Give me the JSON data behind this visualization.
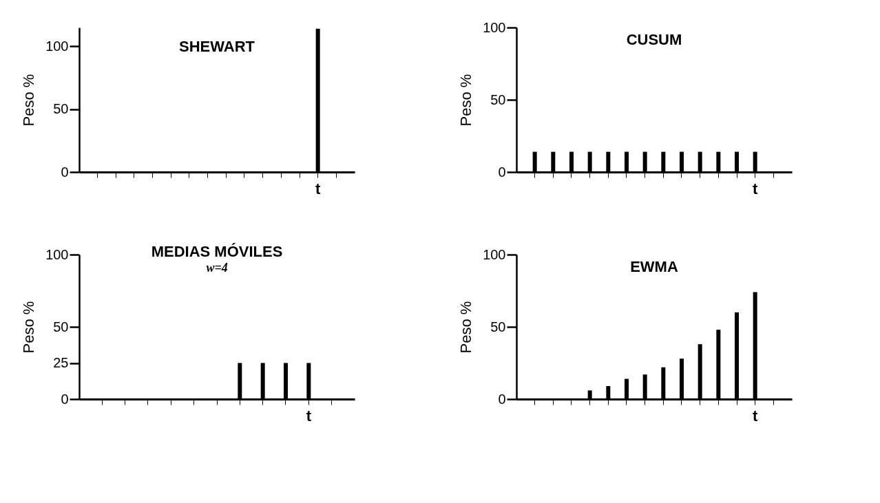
{
  "chart_data": [
    {
      "type": "bar",
      "title": "SHEWART",
      "ylabel": "Peso %",
      "categories": [
        null,
        null,
        null,
        null,
        null,
        null,
        null,
        null,
        null,
        null,
        null,
        null,
        "t",
        null
      ],
      "values": [
        0,
        0,
        0,
        0,
        0,
        0,
        0,
        0,
        0,
        0,
        0,
        0,
        114,
        0
      ],
      "color": "#000000",
      "ylim": [
        0,
        115
      ],
      "yticks": [
        0,
        50,
        100
      ]
    },
    {
      "type": "bar",
      "title": "CUSUM",
      "ylabel": "Peso %",
      "categories": [
        null,
        null,
        null,
        null,
        null,
        null,
        null,
        null,
        null,
        null,
        null,
        null,
        "t",
        null
      ],
      "values": [
        14,
        14,
        14,
        14,
        14,
        14,
        14,
        14,
        14,
        14,
        14,
        14,
        14,
        0
      ],
      "color": "#000000",
      "ylim": [
        0,
        100
      ],
      "yticks": [
        0,
        50,
        100
      ]
    },
    {
      "type": "bar",
      "title": "MEDIAS MÓVILES",
      "subtitle": "w=4",
      "ylabel": "Peso %",
      "categories": [
        null,
        null,
        null,
        null,
        null,
        null,
        null,
        null,
        null,
        "t",
        null
      ],
      "values": [
        0,
        0,
        0,
        0,
        0,
        0,
        25,
        25,
        25,
        25,
        0
      ],
      "color": "#000000",
      "ylim": [
        0,
        100
      ],
      "yticks": [
        0,
        25,
        50,
        100
      ]
    },
    {
      "type": "bar",
      "title": "EWMA",
      "ylabel": "Peso %",
      "categories": [
        null,
        null,
        null,
        null,
        null,
        null,
        null,
        null,
        null,
        null,
        null,
        null,
        "t",
        null
      ],
      "values": [
        0,
        0,
        0,
        6,
        9,
        14,
        17,
        22,
        28,
        38,
        48,
        60,
        74,
        0
      ],
      "color": "#000000",
      "ylim": [
        0,
        100
      ],
      "yticks": [
        0,
        50,
        100
      ]
    }
  ]
}
